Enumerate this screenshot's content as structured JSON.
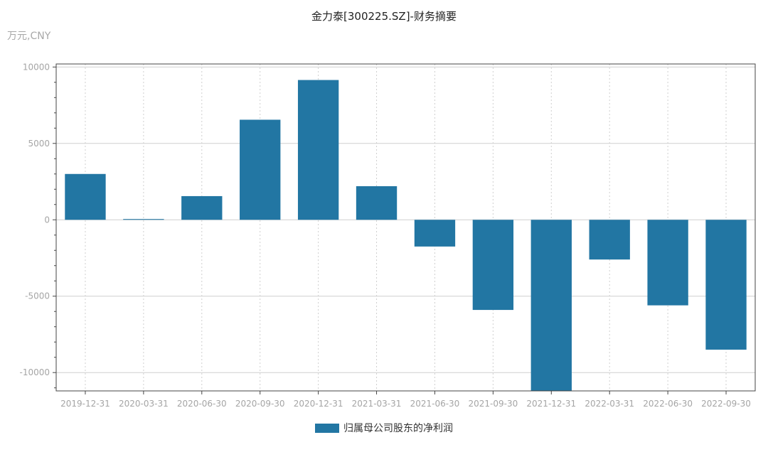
{
  "header": {
    "title": "金力泰[300225.SZ]-财务摘要",
    "unit": "万元,CNY"
  },
  "colors": {
    "bar": "#2276a3",
    "grid": "#cfcfcf",
    "frame": "#444444"
  },
  "chart_data": {
    "type": "bar",
    "title": "金力泰[300225.SZ]-财务摘要",
    "ylabel": "万元,CNY",
    "xlabel": "",
    "categories": [
      "2019-12-31",
      "2020-03-31",
      "2020-06-30",
      "2020-09-30",
      "2020-12-31",
      "2021-03-31",
      "2021-06-30",
      "2021-09-30",
      "2021-12-31",
      "2022-03-31",
      "2022-06-30",
      "2022-09-30"
    ],
    "series": [
      {
        "name": "归属母公司股东的净利润",
        "values": [
          3000,
          50,
          1550,
          6550,
          9150,
          2200,
          -1750,
          -5900,
          -11200,
          -2600,
          -5600,
          -8500
        ]
      }
    ],
    "ylim": [
      -11200,
      10200
    ],
    "yticks": [
      10000,
      5000,
      0,
      -5000,
      -10000
    ],
    "ytick_labels": [
      "10000",
      "5000",
      "0",
      "-5000",
      "-10000"
    ],
    "grid": true,
    "legend_position": "bottom-center"
  }
}
